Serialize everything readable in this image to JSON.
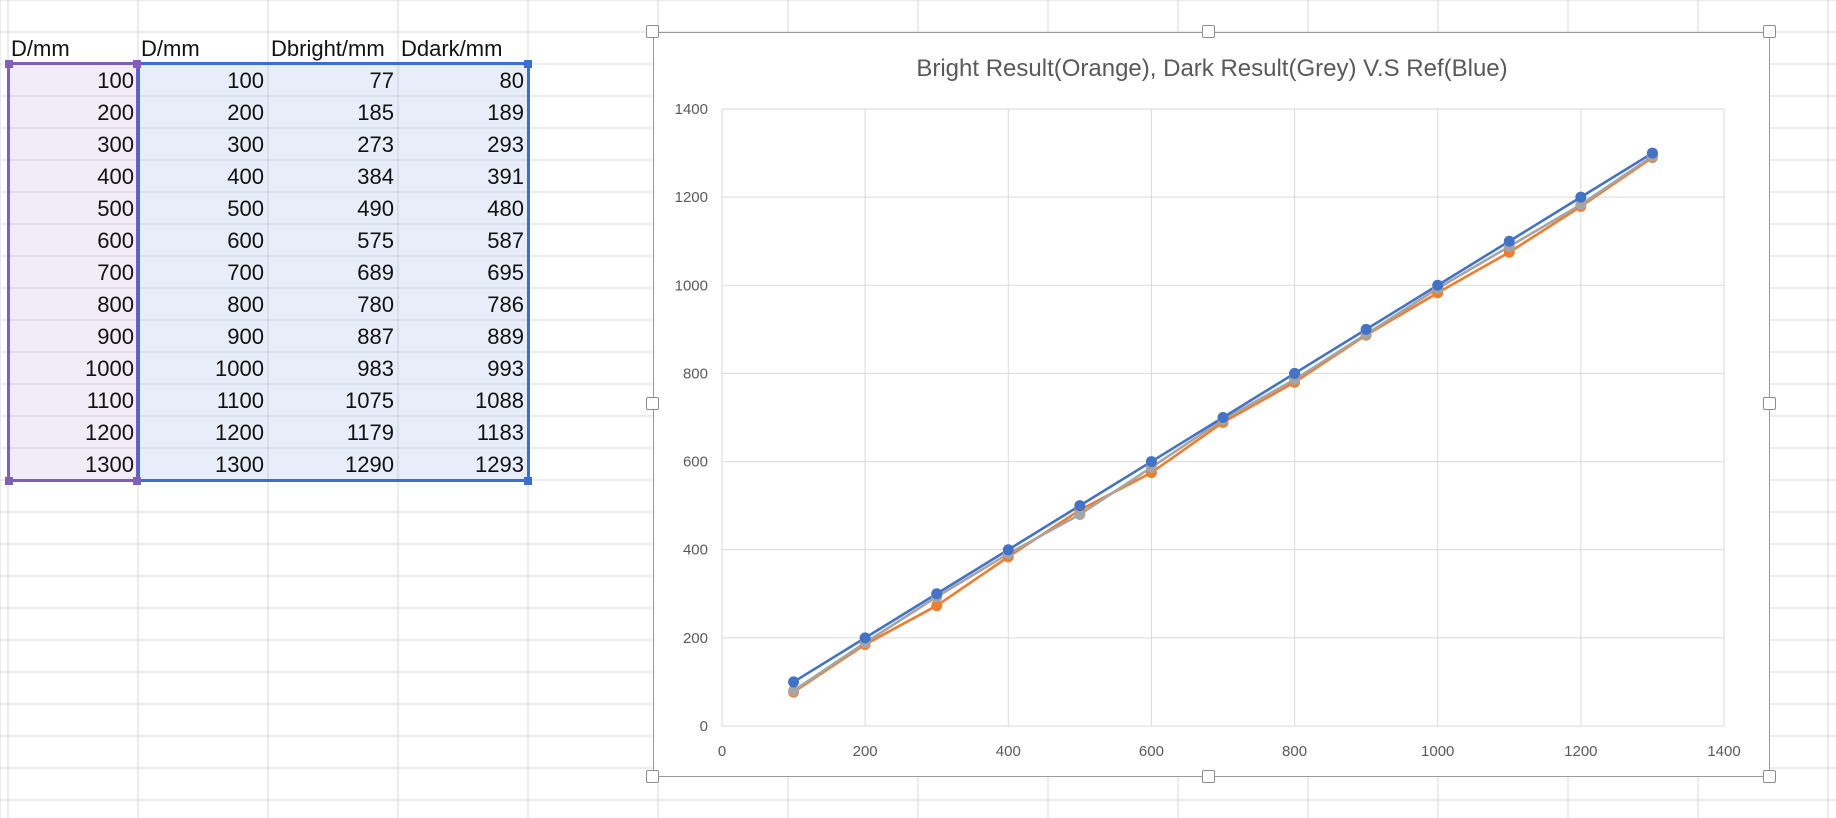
{
  "sheet": {
    "columns": [
      {
        "header": "D/mm",
        "values": [
          100,
          200,
          300,
          400,
          500,
          600,
          700,
          800,
          900,
          1000,
          1100,
          1200,
          1300
        ]
      },
      {
        "header": "D/mm",
        "values": [
          100,
          200,
          300,
          400,
          500,
          600,
          700,
          800,
          900,
          1000,
          1100,
          1200,
          1300
        ]
      },
      {
        "header": "Dbright/mm",
        "values": [
          77,
          185,
          273,
          384,
          490,
          575,
          689,
          780,
          887,
          983,
          1075,
          1179,
          1290
        ]
      },
      {
        "header": "Ddark/mm",
        "values": [
          80,
          189,
          293,
          391,
          480,
          587,
          695,
          786,
          889,
          993,
          1088,
          1183,
          1293
        ]
      }
    ]
  },
  "chart_data": {
    "type": "scatter",
    "title": "Bright Result(Orange), Dark Result(Grey) V.S Ref(Blue)",
    "xlabel": "",
    "ylabel": "",
    "xlim": [
      0,
      1400
    ],
    "ylim": [
      0,
      1400
    ],
    "xticks": [
      0,
      200,
      400,
      600,
      800,
      1000,
      1200,
      1400
    ],
    "yticks": [
      0,
      200,
      400,
      600,
      800,
      1000,
      1200,
      1400
    ],
    "grid": true,
    "legend": "none",
    "x": [
      100,
      200,
      300,
      400,
      500,
      600,
      700,
      800,
      900,
      1000,
      1100,
      1200,
      1300
    ],
    "series": [
      {
        "color": "#4472C4",
        "values": [
          100,
          200,
          300,
          400,
          500,
          600,
          700,
          800,
          900,
          1000,
          1100,
          1200,
          1300
        ]
      },
      {
        "color": "#ED7D31",
        "values": [
          77,
          185,
          273,
          384,
          490,
          575,
          689,
          780,
          887,
          983,
          1075,
          1179,
          1290
        ]
      },
      {
        "color": "#A5A5A5",
        "values": [
          80,
          189,
          293,
          391,
          480,
          587,
          695,
          786,
          889,
          993,
          1088,
          1183,
          1293
        ]
      }
    ]
  },
  "colors": {
    "gridline": "#d9d9d9",
    "selection_purple": "#7F5FB7",
    "selection_blue": "#3A6FD0"
  }
}
